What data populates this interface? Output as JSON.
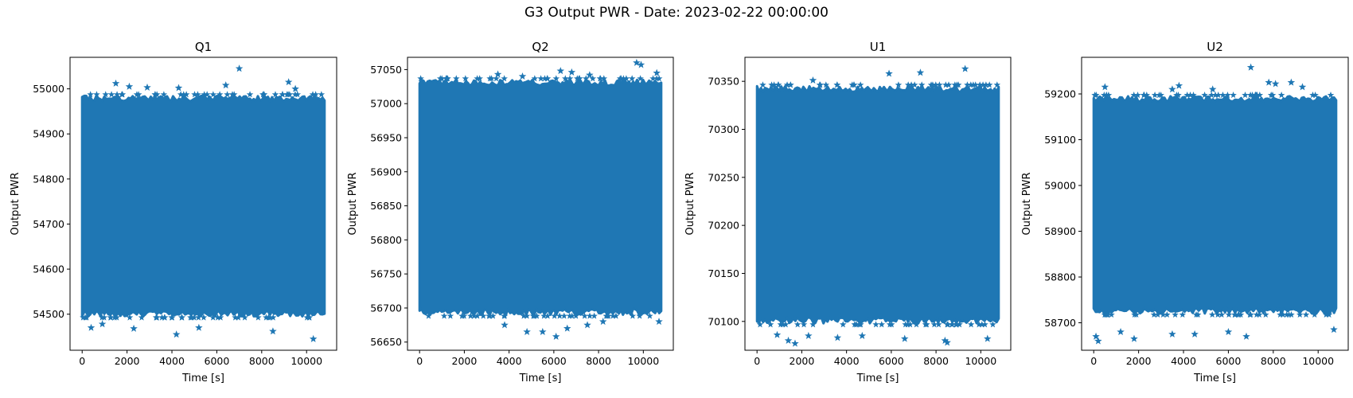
{
  "figure": {
    "title": "G3 Output PWR - Date: 2023-02-22 00:00:00"
  },
  "style": {
    "series_color": "#1f77b4",
    "axis_color": "#000000",
    "marker": "star"
  },
  "chart_data": [
    {
      "type": "scatter",
      "title": "Q1",
      "xlabel": "Time [s]",
      "ylabel": "Output PWR",
      "xlim": [
        -540,
        11340
      ],
      "ylim": [
        54420,
        55070
      ],
      "xticks": [
        0,
        2000,
        4000,
        6000,
        8000,
        10000
      ],
      "yticks": [
        54500,
        54600,
        54700,
        54800,
        54900,
        55000
      ],
      "band": {
        "x_start": 0,
        "x_end": 10800,
        "low": 54495,
        "high": 54985
      },
      "outliers": [
        [
          7000,
          55045
        ],
        [
          1500,
          55012
        ],
        [
          2100,
          55005
        ],
        [
          2900,
          55003
        ],
        [
          4300,
          55002
        ],
        [
          6400,
          55008
        ],
        [
          9200,
          55015
        ],
        [
          9500,
          55000
        ],
        [
          400,
          54470
        ],
        [
          2300,
          54468
        ],
        [
          4200,
          54455
        ],
        [
          5200,
          54470
        ],
        [
          8500,
          54462
        ],
        [
          10300,
          54445
        ],
        [
          900,
          54478
        ]
      ],
      "grid": false,
      "legend": "none"
    },
    {
      "type": "scatter",
      "title": "Q2",
      "xlabel": "Time [s]",
      "ylabel": "Output PWR",
      "xlim": [
        -540,
        11340
      ],
      "ylim": [
        56638,
        57068
      ],
      "xticks": [
        0,
        2000,
        4000,
        6000,
        8000,
        10000
      ],
      "yticks": [
        56650,
        56700,
        56750,
        56800,
        56850,
        56900,
        56950,
        57000,
        57050
      ],
      "band": {
        "x_start": 0,
        "x_end": 10800,
        "low": 56690,
        "high": 57035
      },
      "outliers": [
        [
          9700,
          57060
        ],
        [
          9900,
          57057
        ],
        [
          6300,
          57048
        ],
        [
          6800,
          57046
        ],
        [
          3500,
          57043
        ],
        [
          4600,
          57040
        ],
        [
          7600,
          57042
        ],
        [
          10600,
          57045
        ],
        [
          4800,
          56665
        ],
        [
          5500,
          56665
        ],
        [
          6100,
          56658
        ],
        [
          6600,
          56670
        ],
        [
          7500,
          56675
        ],
        [
          8200,
          56680
        ],
        [
          3800,
          56675
        ],
        [
          10700,
          56680
        ]
      ],
      "grid": false,
      "legend": "none"
    },
    {
      "type": "scatter",
      "title": "U1",
      "xlabel": "Time [s]",
      "ylabel": "Output PWR",
      "xlim": [
        -540,
        11340
      ],
      "ylim": [
        70070,
        70375
      ],
      "xticks": [
        0,
        2000,
        4000,
        6000,
        8000,
        10000
      ],
      "yticks": [
        70100,
        70150,
        70200,
        70250,
        70300,
        70350
      ],
      "band": {
        "x_start": 0,
        "x_end": 10800,
        "low": 70098,
        "high": 70345
      },
      "outliers": [
        [
          9300,
          70363
        ],
        [
          2500,
          70351
        ],
        [
          5900,
          70358
        ],
        [
          7300,
          70359
        ],
        [
          1400,
          70080
        ],
        [
          1700,
          70077
        ],
        [
          2300,
          70085
        ],
        [
          3600,
          70083
        ],
        [
          4700,
          70085
        ],
        [
          6600,
          70082
        ],
        [
          8400,
          70080
        ],
        [
          8500,
          70078
        ],
        [
          10300,
          70082
        ],
        [
          900,
          70086
        ]
      ],
      "grid": false,
      "legend": "none"
    },
    {
      "type": "scatter",
      "title": "U2",
      "xlabel": "Time [s]",
      "ylabel": "Output PWR",
      "xlim": [
        -540,
        11340
      ],
      "ylim": [
        58640,
        59280
      ],
      "xticks": [
        0,
        2000,
        4000,
        6000,
        8000,
        10000
      ],
      "yticks": [
        58700,
        58800,
        58900,
        59000,
        59100,
        59200
      ],
      "band": {
        "x_start": 0,
        "x_end": 10800,
        "low": 58720,
        "high": 59195
      },
      "outliers": [
        [
          7000,
          59258
        ],
        [
          500,
          59215
        ],
        [
          3500,
          59210
        ],
        [
          3800,
          59218
        ],
        [
          5300,
          59210
        ],
        [
          7800,
          59225
        ],
        [
          8100,
          59222
        ],
        [
          8800,
          59225
        ],
        [
          9300,
          59215
        ],
        [
          100,
          58670
        ],
        [
          200,
          58660
        ],
        [
          1200,
          58680
        ],
        [
          1800,
          58665
        ],
        [
          3500,
          58675
        ],
        [
          4500,
          58675
        ],
        [
          6000,
          58680
        ],
        [
          6800,
          58670
        ],
        [
          10700,
          58685
        ]
      ],
      "grid": false,
      "legend": "none"
    }
  ]
}
